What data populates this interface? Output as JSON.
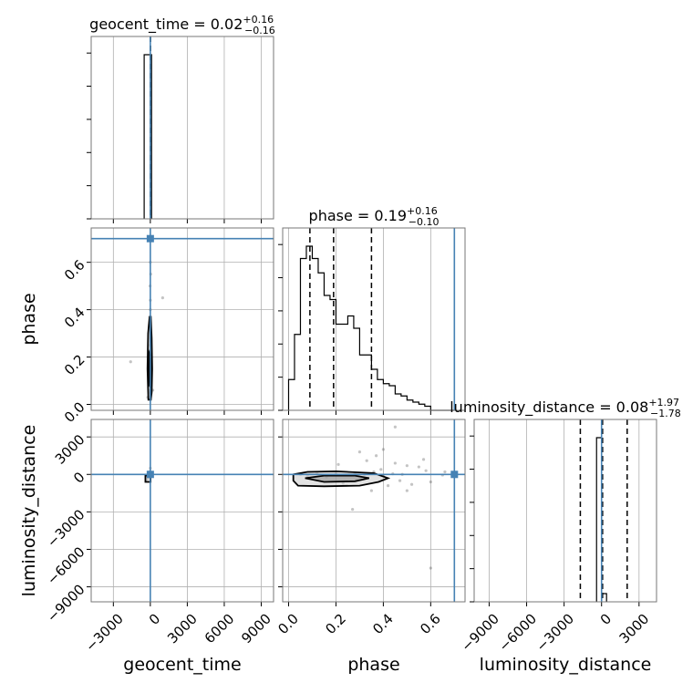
{
  "chart_data": {
    "type": "corner",
    "parameters": [
      "geocent_time",
      "phase",
      "luminosity_distance"
    ],
    "truths": {
      "geocent_time": 0,
      "phase": 0.7,
      "luminosity_distance": 0
    },
    "truth_color": "#4682b4",
    "grid": true,
    "titles": [
      {
        "name": "geocent_time",
        "prefix": "geocent_time = ",
        "value": "0.02",
        "plus": "+0.16",
        "minus": "−0.16"
      },
      {
        "name": "phase",
        "prefix": "phase = ",
        "value": "0.19",
        "plus": "+0.16",
        "minus": "−0.10"
      },
      {
        "name": "luminosity_distance",
        "prefix": "luminosity_distance = ",
        "value": "0.08",
        "plus": "+1.97",
        "minus": "−1.78"
      }
    ],
    "axis_labels": {
      "x": [
        "geocent_time",
        "phase",
        "luminosity_distance"
      ],
      "y": [
        "phase",
        "luminosity_distance"
      ]
    },
    "ticks": {
      "geocent_time": [
        {
          "v": -3000,
          "t": "−3000"
        },
        {
          "v": 0,
          "t": "0"
        },
        {
          "v": 3000,
          "t": "3000"
        },
        {
          "v": 6000,
          "t": "6000"
        },
        {
          "v": 9000,
          "t": "9000"
        }
      ],
      "phase": [
        {
          "v": 0.0,
          "t": "0.0"
        },
        {
          "v": 0.2,
          "t": "0.2"
        },
        {
          "v": 0.4,
          "t": "0.4"
        },
        {
          "v": 0.6,
          "t": "0.6"
        }
      ],
      "luminosity_distance": [
        {
          "v": -9000,
          "t": "−9000"
        },
        {
          "v": -6000,
          "t": "−6000"
        },
        {
          "v": -3000,
          "t": "−3000"
        },
        {
          "v": 0,
          "t": "0"
        },
        {
          "v": 3000,
          "t": "3000"
        }
      ]
    },
    "ranges": {
      "geocent_time": [
        -4800,
        10000
      ],
      "phase": [
        -0.025,
        0.745
      ],
      "luminosity_distance": [
        -10200,
        4400
      ]
    },
    "hist_geocent_time": {
      "edges": [
        -500,
        0,
        100
      ],
      "counts": [
        1.0,
        1.0
      ],
      "quantiles": [
        -0.14,
        0.02,
        0.18
      ]
    },
    "hist_phase": {
      "edges": [
        0.0,
        0.025,
        0.05,
        0.075,
        0.1,
        0.125,
        0.15,
        0.175,
        0.2,
        0.225,
        0.25,
        0.275,
        0.3,
        0.325,
        0.35,
        0.375,
        0.4,
        0.425,
        0.45,
        0.475,
        0.5,
        0.525,
        0.55,
        0.575,
        0.6,
        0.625,
        0.65,
        0.675,
        0.7
      ],
      "counts": [
        0.15,
        0.37,
        0.74,
        0.8,
        0.74,
        0.67,
        0.56,
        0.54,
        0.42,
        0.42,
        0.46,
        0.4,
        0.27,
        0.27,
        0.2,
        0.15,
        0.13,
        0.12,
        0.08,
        0.07,
        0.05,
        0.04,
        0.03,
        0.02,
        0.0,
        0.0,
        0.0,
        0.0
      ],
      "quantiles": [
        0.09,
        0.19,
        0.35
      ]
    },
    "hist_luminosity_distance": {
      "edges": [
        -400,
        0,
        400
      ],
      "counts": [
        1.0,
        0.05
      ],
      "quantiles": [
        -1700,
        80,
        2050
      ]
    },
    "scatter_phase_vs_geocent_time": {
      "points": [
        [
          0,
          0.05
        ],
        [
          20,
          0.08
        ],
        [
          -10,
          0.1
        ],
        [
          10,
          0.15
        ],
        [
          -20,
          0.2
        ],
        [
          0,
          0.25
        ],
        [
          30,
          0.3
        ],
        [
          -10,
          0.35
        ],
        [
          0,
          0.4
        ],
        [
          40,
          0.28
        ],
        [
          -30,
          0.18
        ],
        [
          20,
          0.12
        ],
        [
          -60,
          0.06
        ],
        [
          10,
          0.02
        ],
        [
          0,
          0.44
        ],
        [
          -20,
          0.5
        ],
        [
          30,
          0.55
        ],
        [
          0,
          0.6
        ],
        [
          1000,
          0.45
        ],
        [
          -1600,
          0.18
        ],
        [
          200,
          0.06
        ],
        [
          -200,
          0.03
        ]
      ],
      "contours": [
        [
          [
            -160,
            0.02
          ],
          [
            -230,
            0.15
          ],
          [
            -180,
            0.3
          ],
          [
            -60,
            0.37
          ],
          [
            40,
            0.37
          ],
          [
            110,
            0.28
          ],
          [
            150,
            0.15
          ],
          [
            110,
            0.05
          ],
          [
            40,
            0.02
          ]
        ],
        [
          [
            -60,
            0.08
          ],
          [
            -110,
            0.15
          ],
          [
            -80,
            0.22
          ],
          [
            -20,
            0.23
          ],
          [
            40,
            0.2
          ],
          [
            60,
            0.13
          ],
          [
            30,
            0.07
          ]
        ]
      ]
    },
    "scatter_ld_vs_geocent_time": {
      "points": [
        [
          0,
          0
        ],
        [
          -200,
          -300
        ],
        [
          -300,
          -500
        ],
        [
          -100,
          200
        ],
        [
          50,
          -100
        ],
        [
          0,
          500
        ],
        [
          -50,
          -200
        ]
      ],
      "contours": [
        [
          [
            -400,
            -600
          ],
          [
            -400,
            -100
          ],
          [
            20,
            -100
          ],
          [
            20,
            -600
          ]
        ]
      ]
    },
    "scatter_ld_vs_phase": {
      "points": [
        [
          0.05,
          0
        ],
        [
          0.08,
          -100
        ],
        [
          0.12,
          100
        ],
        [
          0.16,
          -200
        ],
        [
          0.2,
          50
        ],
        [
          0.24,
          -50
        ],
        [
          0.28,
          100
        ],
        [
          0.32,
          0
        ],
        [
          0.36,
          200
        ],
        [
          0.4,
          -100
        ],
        [
          0.44,
          50
        ],
        [
          0.48,
          0
        ],
        [
          0.3,
          1800
        ],
        [
          0.35,
          -1300
        ],
        [
          0.45,
          900
        ],
        [
          0.52,
          -800
        ],
        [
          0.27,
          -2800
        ],
        [
          0.55,
          600
        ],
        [
          0.4,
          2000
        ],
        [
          0.5,
          700
        ],
        [
          0.6,
          -600
        ],
        [
          0.33,
          1100
        ],
        [
          0.42,
          -900
        ],
        [
          0.58,
          300
        ],
        [
          0.21,
          800
        ],
        [
          0.37,
          1500
        ],
        [
          0.47,
          -500
        ],
        [
          0.65,
          -50
        ],
        [
          0.57,
          1200
        ],
        [
          0.23,
          -700
        ],
        [
          0.45,
          3800
        ],
        [
          0.6,
          -7500
        ],
        [
          0.66,
          200
        ],
        [
          0.5,
          -1300
        ],
        [
          0.39,
          400
        ]
      ],
      "contours": [
        [
          [
            0.02,
            -500
          ],
          [
            0.04,
            -900
          ],
          [
            0.15,
            -950
          ],
          [
            0.3,
            -900
          ],
          [
            0.38,
            -600
          ],
          [
            0.42,
            -300
          ],
          [
            0.36,
            100
          ],
          [
            0.2,
            250
          ],
          [
            0.08,
            200
          ],
          [
            0.02,
            0
          ]
        ],
        [
          [
            0.07,
            -300
          ],
          [
            0.15,
            -600
          ],
          [
            0.28,
            -550
          ],
          [
            0.34,
            -300
          ],
          [
            0.28,
            -100
          ],
          [
            0.15,
            -100
          ]
        ]
      ]
    }
  }
}
